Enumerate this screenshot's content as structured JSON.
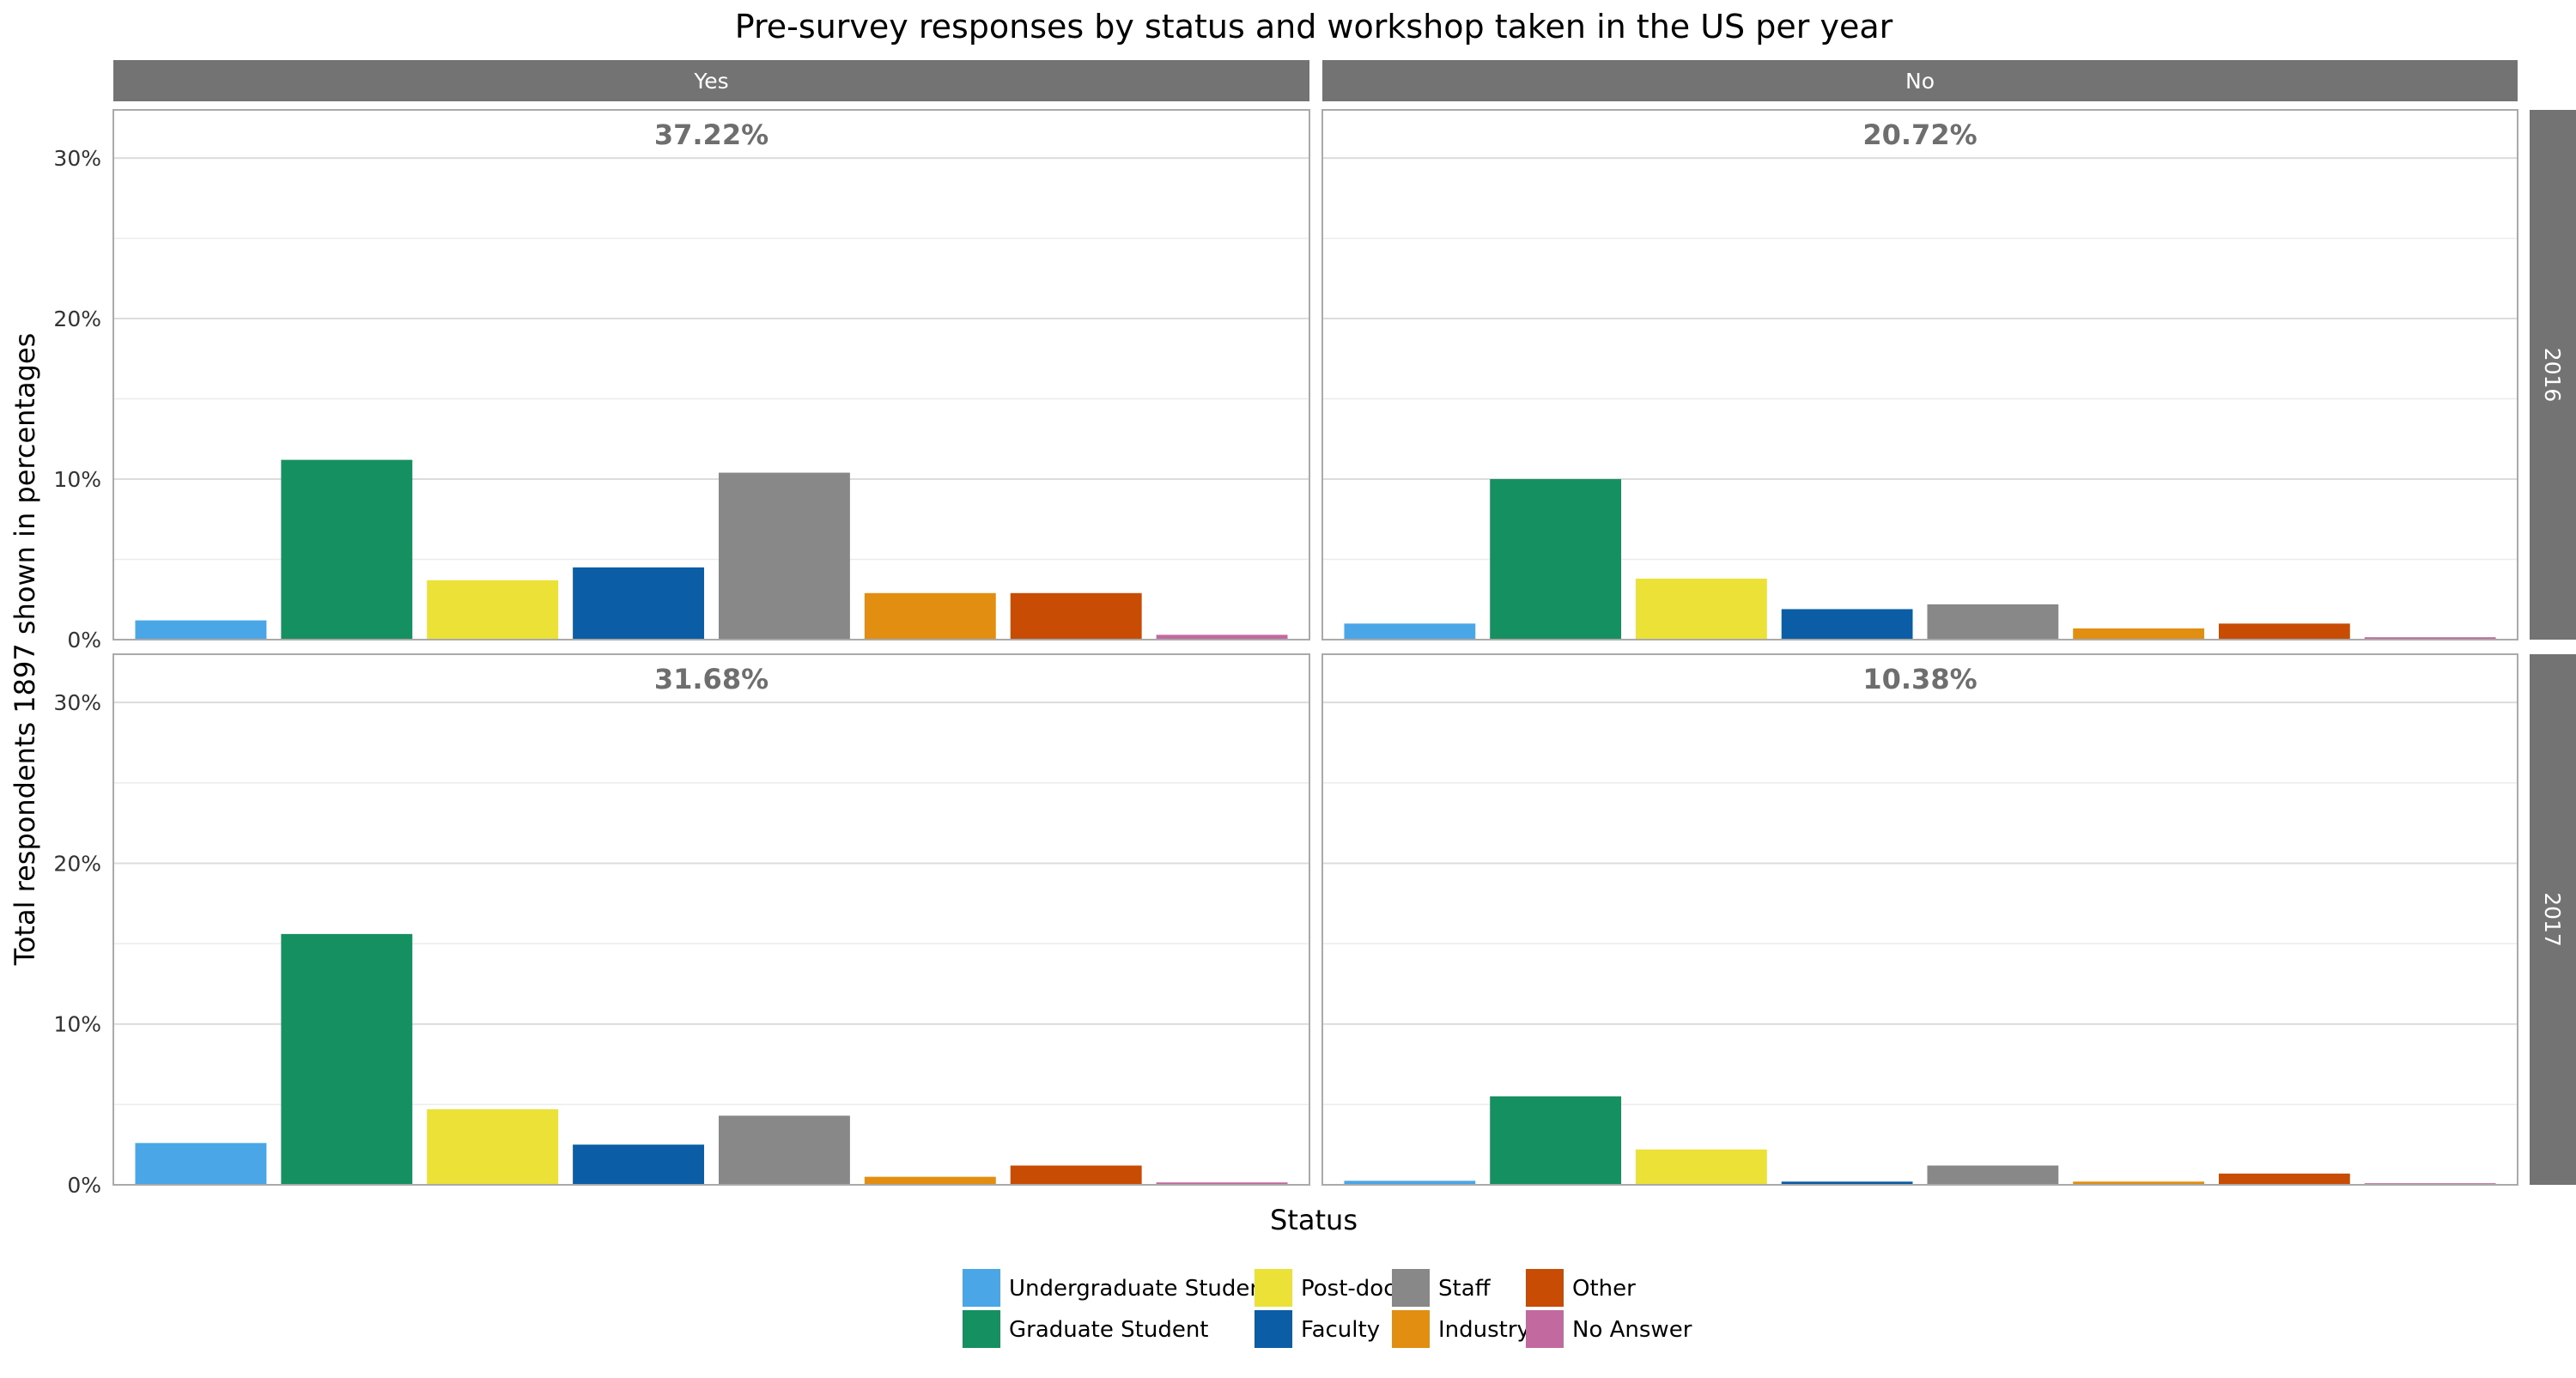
{
  "chart_data": {
    "type": "bar",
    "title": "Pre-survey responses by status and workshop taken in the US per year",
    "xlabel": "Status",
    "ylabel": "Total respondents 1897 shown in percentages",
    "ylim": [
      0,
      33
    ],
    "yticks": [
      0,
      10,
      20,
      30
    ],
    "ytick_labels": [
      "0%",
      "10%",
      "20%",
      "30%"
    ],
    "grid": true,
    "legend_position": "bottom",
    "categories": [
      "Undergraduate Student",
      "Graduate Student",
      "Post-doc",
      "Faculty",
      "Staff",
      "Industry",
      "Other",
      "No Answer"
    ],
    "colors": [
      "#4aa6e6",
      "#159060",
      "#ece237",
      "#0b5ea6",
      "#888888",
      "#e28e10",
      "#c94c04",
      "#c26aa0"
    ],
    "col_facets": [
      "Yes",
      "No"
    ],
    "row_facets": [
      "2016",
      "2017"
    ],
    "panels": [
      {
        "col": "Yes",
        "row": "2016",
        "annotation": "37.22%",
        "values": [
          1.2,
          11.2,
          3.7,
          4.5,
          10.4,
          2.9,
          2.9,
          0.3
        ]
      },
      {
        "col": "No",
        "row": "2016",
        "annotation": "20.72%",
        "values": [
          1.0,
          10.0,
          3.8,
          1.9,
          2.2,
          0.7,
          1.0,
          0.15
        ]
      },
      {
        "col": "Yes",
        "row": "2017",
        "annotation": "31.68%",
        "values": [
          2.6,
          15.6,
          4.7,
          2.5,
          4.3,
          0.5,
          1.2,
          0.15
        ]
      },
      {
        "col": "No",
        "row": "2017",
        "annotation": "10.38%",
        "values": [
          0.25,
          5.5,
          2.2,
          0.2,
          1.2,
          0.2,
          0.7,
          0.1
        ]
      }
    ]
  }
}
